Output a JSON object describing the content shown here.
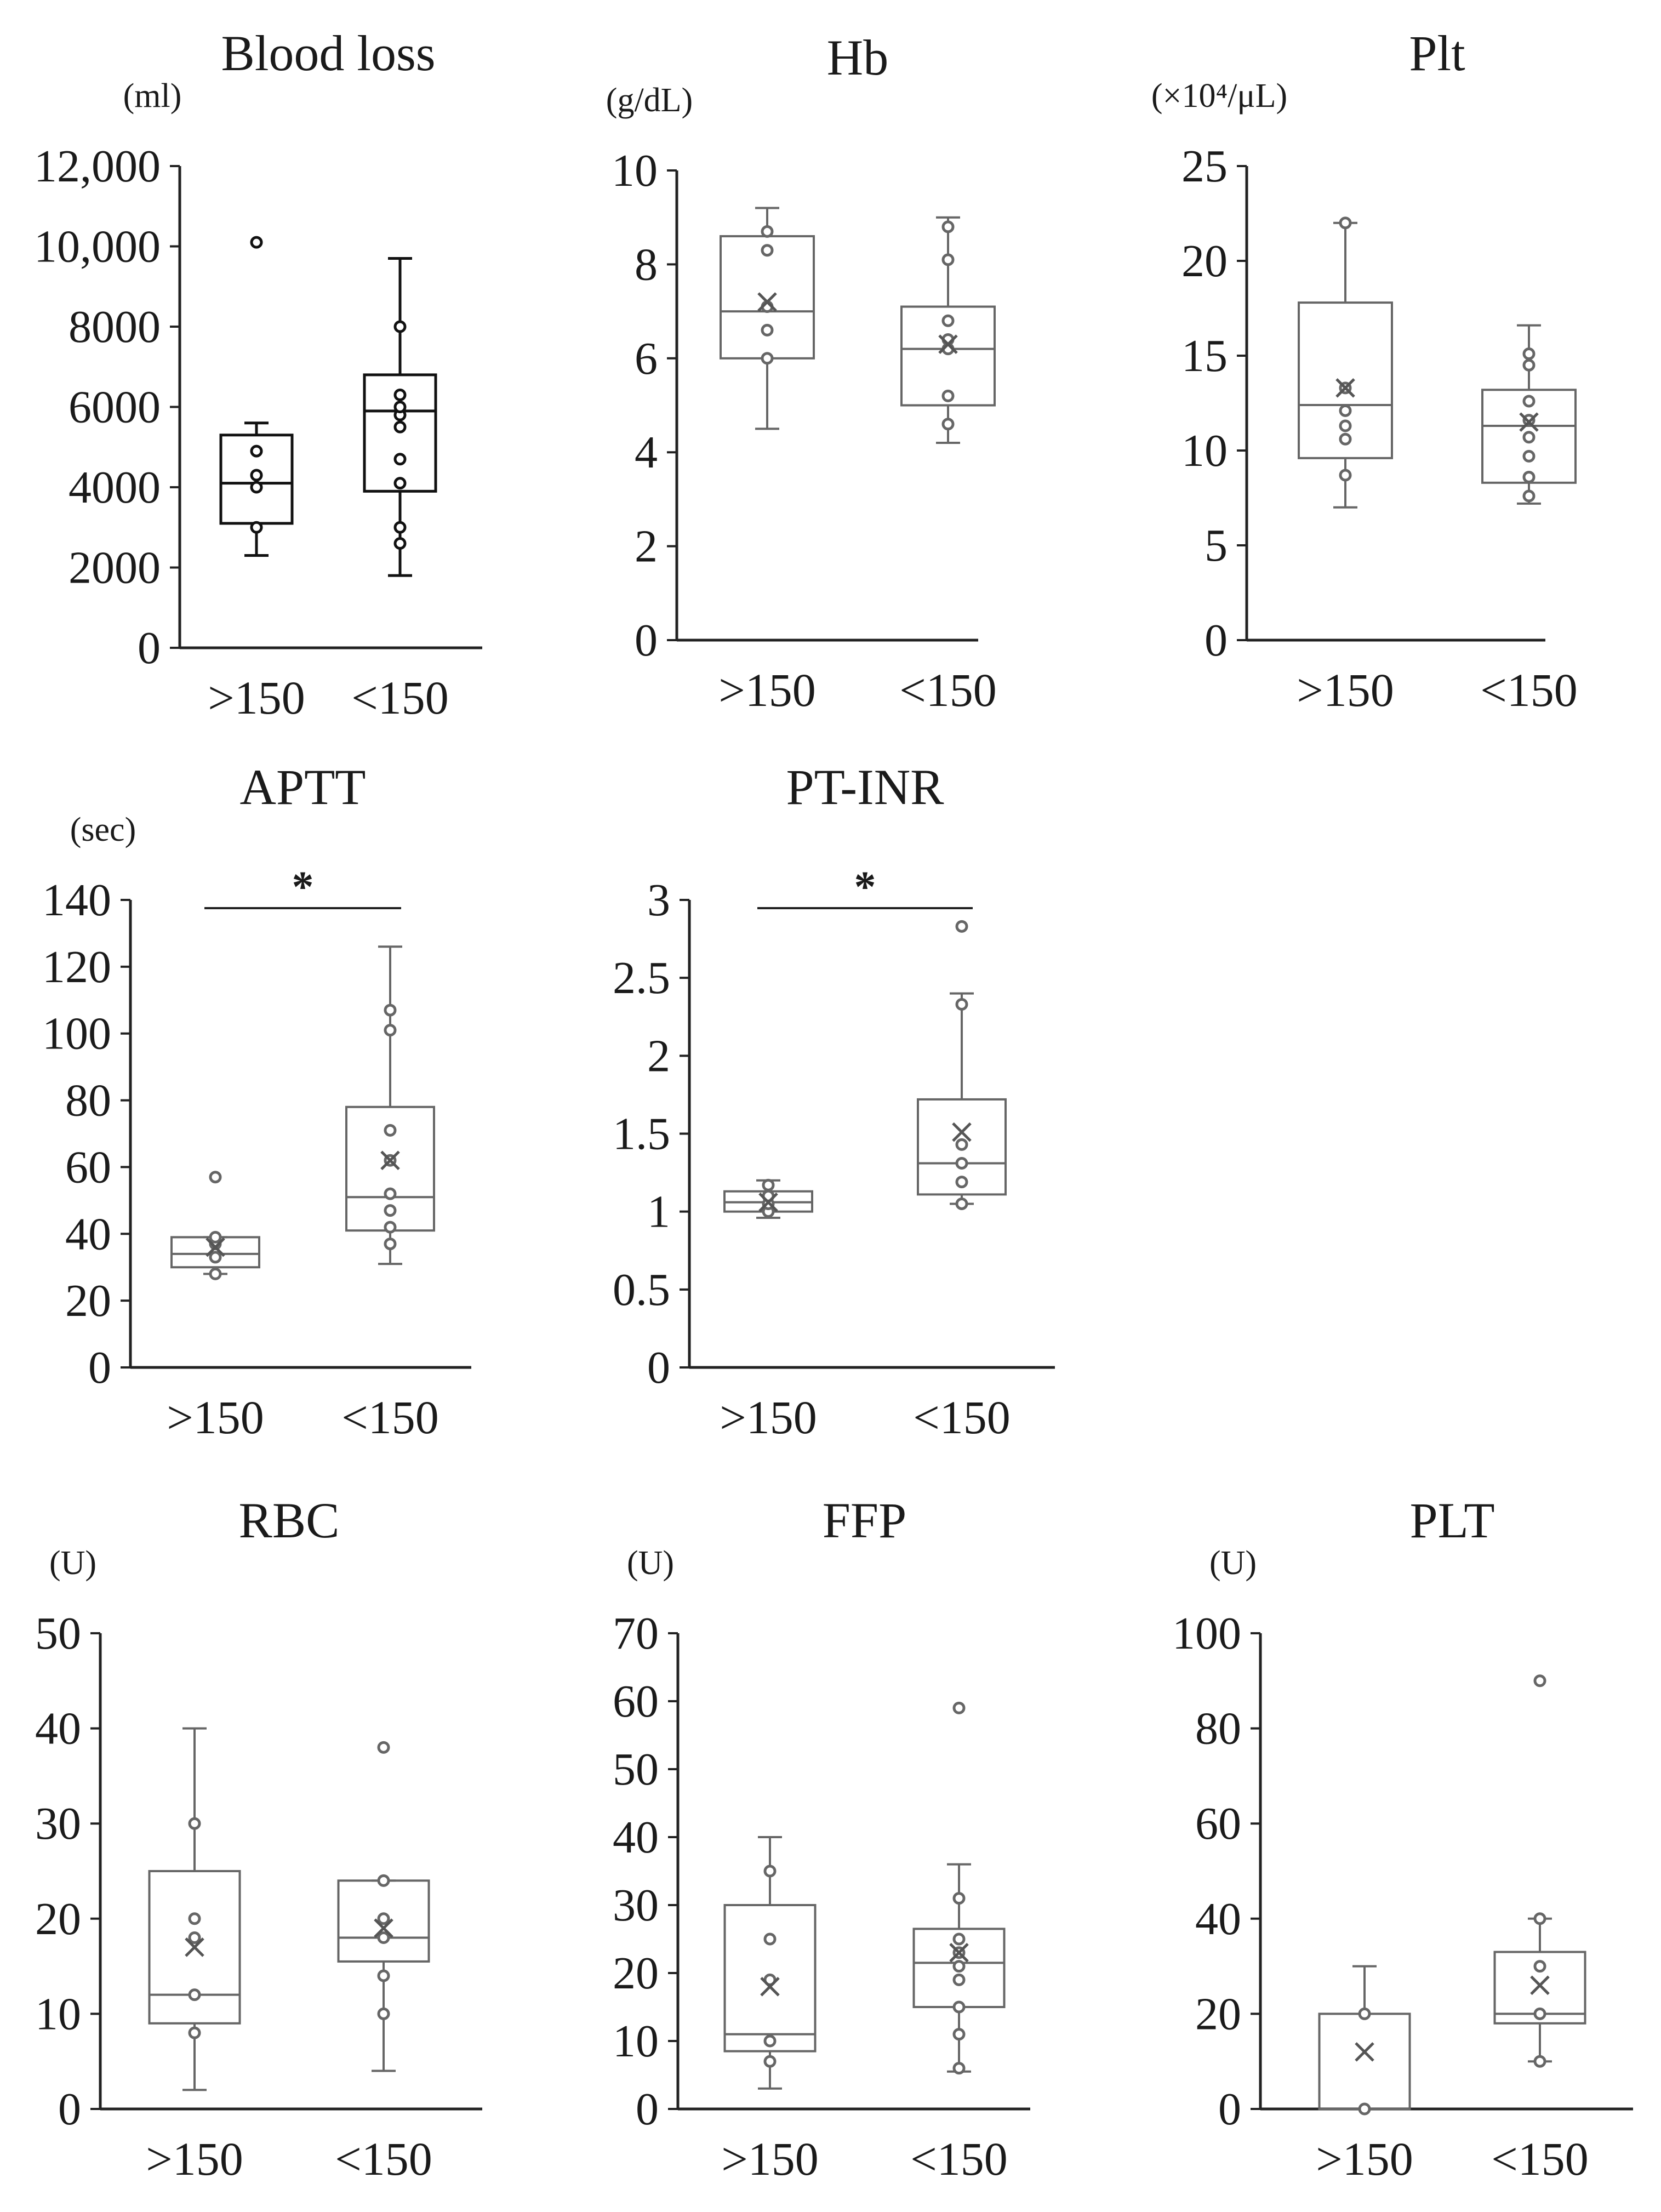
{
  "chart_data": [
    {
      "type": "box",
      "title": "Blood loss",
      "unit": "(ml)",
      "ylim": [
        0,
        12000
      ],
      "yticks": [
        0,
        2000,
        4000,
        6000,
        8000,
        10000,
        12000
      ],
      "ytick_labels": [
        "0",
        "2000",
        "4000",
        "6000",
        "8000",
        "10,000",
        "12,000"
      ],
      "categories": [
        ">150",
        "<150"
      ],
      "boxes": [
        {
          "whisker_low": 2300,
          "q1": 3100,
          "median": 4100,
          "q3": 5300,
          "whisker_high": 5600,
          "points": [
            3000,
            4000,
            4300,
            4900,
            10100
          ]
        },
        {
          "whisker_low": 1800,
          "q1": 3900,
          "median": 5900,
          "q3": 6800,
          "whisker_high": 9700,
          "points": [
            2600,
            3000,
            4100,
            4700,
            5500,
            5800,
            6000,
            6300,
            8000
          ]
        }
      ],
      "significance": null
    },
    {
      "type": "box",
      "title": "Hb",
      "unit": "(g/dL)",
      "ylim": [
        0,
        10
      ],
      "yticks": [
        0,
        2,
        4,
        6,
        8,
        10
      ],
      "ytick_labels": [
        "0",
        "2",
        "4",
        "6",
        "8",
        "10"
      ],
      "categories": [
        ">150",
        "<150"
      ],
      "boxes": [
        {
          "whisker_low": 4.5,
          "q1": 6.0,
          "median": 7.0,
          "q3": 8.6,
          "whisker_high": 9.2,
          "mean": 7.2,
          "points": [
            6.0,
            6.6,
            7.1,
            8.3,
            8.7
          ]
        },
        {
          "whisker_low": 4.2,
          "q1": 5.0,
          "median": 6.2,
          "q3": 7.1,
          "whisker_high": 9.0,
          "mean": 6.3,
          "points": [
            4.6,
            5.2,
            6.2,
            6.4,
            6.8,
            8.1,
            8.8
          ]
        }
      ],
      "significance": null
    },
    {
      "type": "box",
      "title": "Plt",
      "unit": "(×10⁴/μL)",
      "ylim": [
        0,
        25
      ],
      "yticks": [
        0,
        5,
        10,
        15,
        20,
        25
      ],
      "ytick_labels": [
        "0",
        "5",
        "10",
        "15",
        "20",
        "25"
      ],
      "categories": [
        ">150",
        "<150"
      ],
      "boxes": [
        {
          "whisker_low": 7.0,
          "q1": 9.6,
          "median": 12.4,
          "q3": 17.8,
          "whisker_high": 22.0,
          "mean": 13.3,
          "points": [
            8.7,
            10.6,
            11.3,
            12.1,
            13.3,
            22.0
          ]
        },
        {
          "whisker_low": 7.2,
          "q1": 8.3,
          "median": 11.3,
          "q3": 13.2,
          "whisker_high": 16.6,
          "mean": 11.5,
          "points": [
            7.6,
            8.6,
            9.7,
            10.7,
            11.6,
            12.6,
            14.5,
            15.1
          ]
        }
      ],
      "significance": null
    },
    {
      "type": "box",
      "title": "APTT",
      "unit": "(sec)",
      "ylim": [
        0,
        140
      ],
      "yticks": [
        0,
        20,
        40,
        60,
        80,
        100,
        120,
        140
      ],
      "ytick_labels": [
        "0",
        "20",
        "40",
        "60",
        "80",
        "100",
        "120",
        "140"
      ],
      "categories": [
        ">150",
        "<150"
      ],
      "boxes": [
        {
          "whisker_low": 28,
          "q1": 30,
          "median": 34,
          "q3": 39,
          "whisker_high": 39,
          "mean": 36,
          "points": [
            28,
            33,
            37,
            39,
            57
          ]
        },
        {
          "whisker_low": 31,
          "q1": 41,
          "median": 51,
          "q3": 78,
          "whisker_high": 126,
          "mean": 62,
          "points": [
            37,
            42,
            47,
            52,
            62,
            71,
            101,
            107
          ]
        }
      ],
      "significance": "*"
    },
    {
      "type": "box",
      "title": "PT-INR",
      "unit": "",
      "ylim": [
        0,
        3
      ],
      "yticks": [
        0,
        0.5,
        1,
        1.5,
        2,
        2.5,
        3
      ],
      "ytick_labels": [
        "0",
        "0.5",
        "1",
        "1.5",
        "2",
        "2.5",
        "3"
      ],
      "categories": [
        ">150",
        "<150"
      ],
      "boxes": [
        {
          "whisker_low": 0.96,
          "q1": 1.0,
          "median": 1.06,
          "q3": 1.13,
          "whisker_high": 1.2,
          "mean": 1.06,
          "points": [
            1.0,
            1.05,
            1.1,
            1.17
          ]
        },
        {
          "whisker_low": 1.05,
          "q1": 1.11,
          "median": 1.31,
          "q3": 1.72,
          "whisker_high": 2.4,
          "mean": 1.51,
          "points": [
            1.05,
            1.19,
            1.31,
            1.43,
            2.33,
            2.83
          ]
        }
      ],
      "significance": "*"
    },
    {
      "type": "box",
      "title": "RBC",
      "unit": "(U)",
      "ylim": [
        0,
        50
      ],
      "yticks": [
        0,
        10,
        20,
        30,
        40,
        50
      ],
      "ytick_labels": [
        "0",
        "10",
        "20",
        "30",
        "40",
        "50"
      ],
      "categories": [
        ">150",
        "<150"
      ],
      "boxes": [
        {
          "whisker_low": 2,
          "q1": 9,
          "median": 12,
          "q3": 25,
          "whisker_high": 40,
          "mean": 17,
          "points": [
            8,
            12,
            18,
            20,
            30
          ]
        },
        {
          "whisker_low": 4,
          "q1": 15.5,
          "median": 18,
          "q3": 24,
          "whisker_high": 24,
          "mean": 19,
          "points": [
            10,
            14,
            18,
            20,
            24,
            38
          ]
        }
      ],
      "significance": null
    },
    {
      "type": "box",
      "title": "FFP",
      "unit": "(U)",
      "ylim": [
        0,
        70
      ],
      "yticks": [
        0,
        10,
        20,
        30,
        40,
        50,
        60,
        70
      ],
      "ytick_labels": [
        "0",
        "10",
        "20",
        "30",
        "40",
        "50",
        "60",
        "70"
      ],
      "categories": [
        ">150",
        "<150"
      ],
      "boxes": [
        {
          "whisker_low": 3,
          "q1": 8.5,
          "median": 11,
          "q3": 30,
          "whisker_high": 40,
          "mean": 18,
          "points": [
            7,
            10,
            19,
            25,
            35
          ]
        },
        {
          "whisker_low": 5.5,
          "q1": 15,
          "median": 21.5,
          "q3": 26.5,
          "whisker_high": 36,
          "mean": 23,
          "points": [
            6,
            11,
            15,
            19,
            21,
            23,
            25,
            31,
            59
          ]
        }
      ],
      "significance": null
    },
    {
      "type": "box",
      "title": "PLT",
      "unit": "(U)",
      "ylim": [
        0,
        100
      ],
      "yticks": [
        0,
        20,
        40,
        60,
        80,
        100
      ],
      "ytick_labels": [
        "0",
        "20",
        "40",
        "60",
        "80",
        "100"
      ],
      "categories": [
        ">150",
        "<150"
      ],
      "boxes": [
        {
          "whisker_low": 0,
          "q1": 0,
          "median": 0,
          "q3": 20,
          "whisker_high": 30,
          "mean": 12,
          "points": [
            0,
            20
          ]
        },
        {
          "whisker_low": 10,
          "q1": 18,
          "median": 20,
          "q3": 33,
          "whisker_high": 40,
          "mean": 26,
          "points": [
            10,
            20,
            30,
            40,
            90
          ]
        }
      ],
      "significance": null
    }
  ]
}
